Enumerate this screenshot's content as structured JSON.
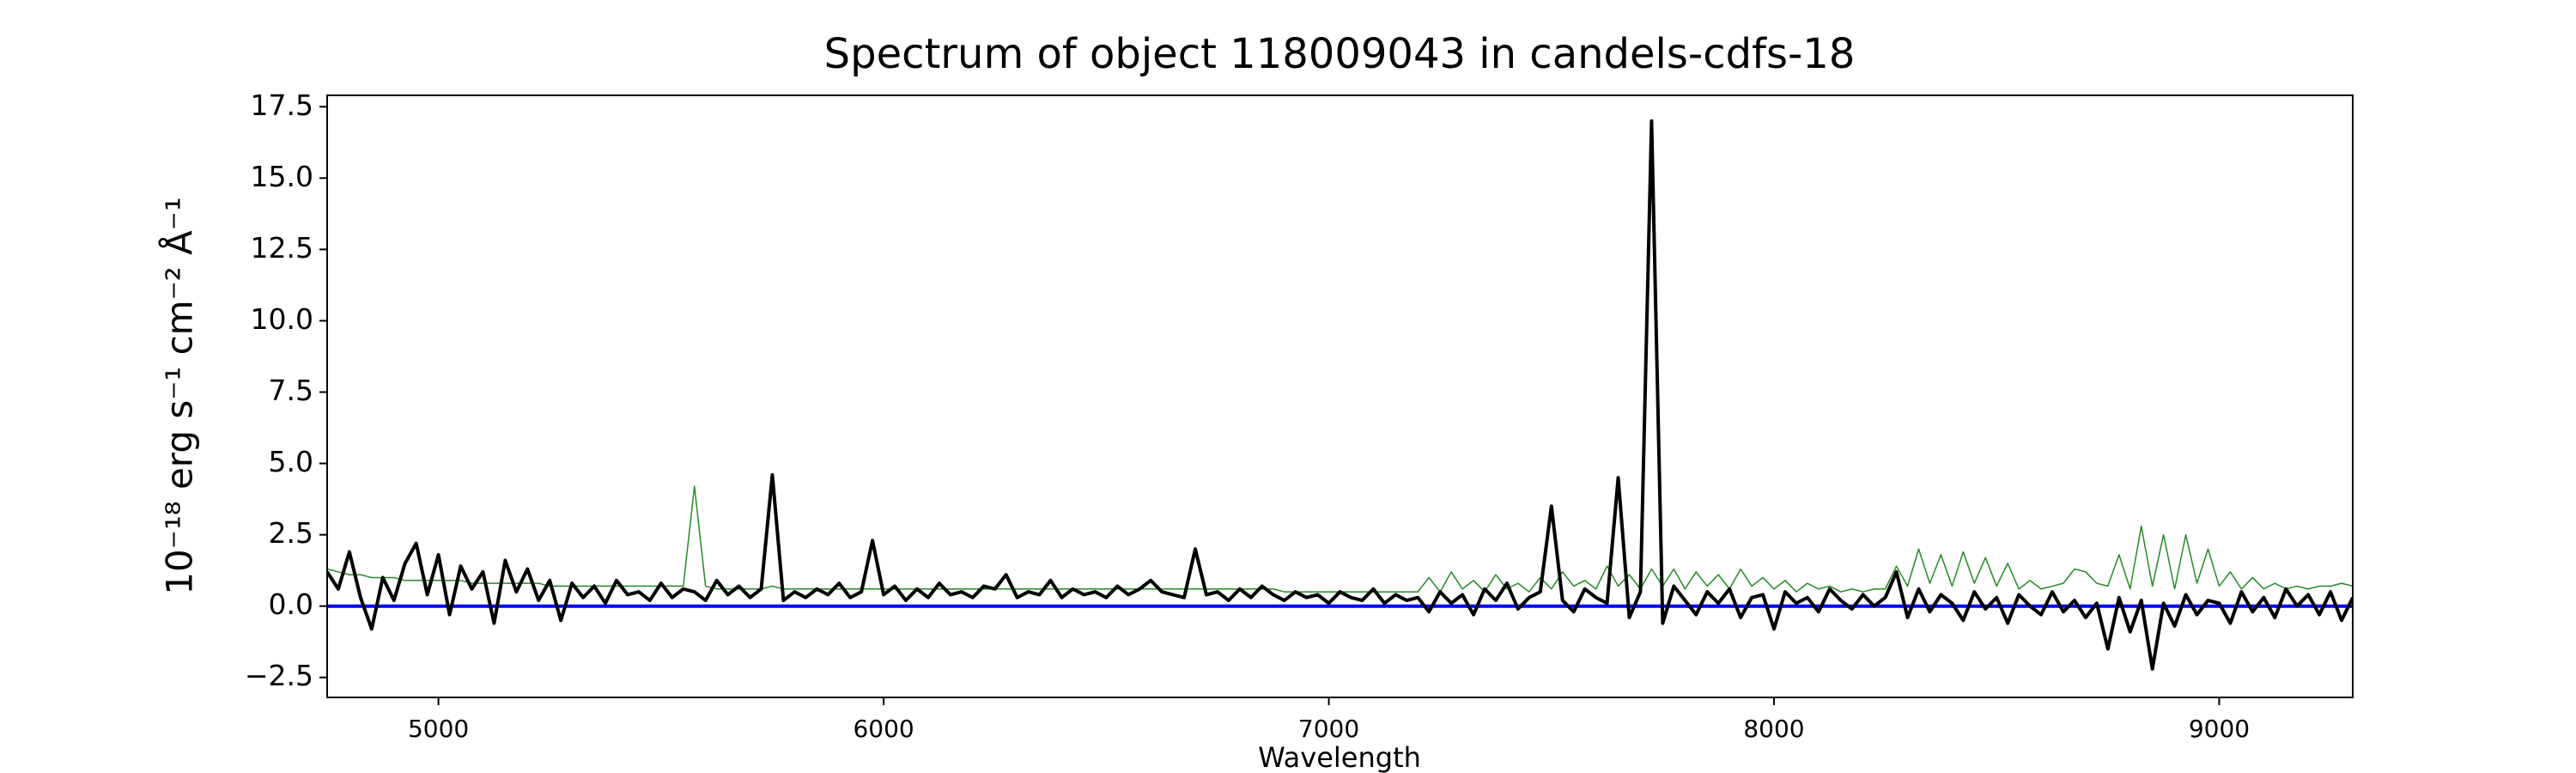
{
  "chart_data": {
    "type": "line",
    "title": "Spectrum of object 118009043 in candels-cdfs-18",
    "x_label": "Wavelength",
    "y_label": "10⁻¹⁸ erg s⁻¹ cm⁻² Å⁻¹",
    "xlim": [
      4750,
      9300
    ],
    "ylim": [
      -3.2,
      17.9
    ],
    "xticks": [
      5000,
      6000,
      7000,
      8000,
      9000
    ],
    "yticks": [
      {
        "value": -2.5,
        "label": "−2.5"
      },
      {
        "value": 0,
        "label": "0.0"
      },
      2.5,
      {
        "value": 5,
        "label": "5.0"
      },
      7.5,
      {
        "value": 10,
        "label": "10.0"
      },
      12.5,
      {
        "value": 15,
        "label": "15.0"
      },
      17.5
    ],
    "x": [
      4750,
      4775,
      4800,
      4825,
      4850,
      4875,
      4900,
      4925,
      4950,
      4975,
      5000,
      5025,
      5050,
      5075,
      5100,
      5125,
      5150,
      5175,
      5200,
      5225,
      5250,
      5275,
      5300,
      5325,
      5350,
      5375,
      5400,
      5425,
      5450,
      5475,
      5500,
      5525,
      5550,
      5575,
      5600,
      5625,
      5650,
      5675,
      5700,
      5725,
      5750,
      5775,
      5800,
      5825,
      5850,
      5875,
      5900,
      5925,
      5950,
      5975,
      6000,
      6025,
      6050,
      6075,
      6100,
      6125,
      6150,
      6175,
      6200,
      6225,
      6250,
      6275,
      6300,
      6325,
      6350,
      6375,
      6400,
      6425,
      6450,
      6475,
      6500,
      6525,
      6550,
      6575,
      6600,
      6625,
      6650,
      6675,
      6700,
      6725,
      6750,
      6775,
      6800,
      6825,
      6850,
      6875,
      6900,
      6925,
      6950,
      6975,
      7000,
      7025,
      7050,
      7075,
      7100,
      7125,
      7150,
      7175,
      7200,
      7225,
      7250,
      7275,
      7300,
      7325,
      7350,
      7375,
      7400,
      7425,
      7450,
      7475,
      7500,
      7525,
      7550,
      7575,
      7600,
      7625,
      7650,
      7675,
      7700,
      7725,
      7750,
      7775,
      7800,
      7825,
      7850,
      7875,
      7900,
      7925,
      7950,
      7975,
      8000,
      8025,
      8050,
      8075,
      8100,
      8125,
      8150,
      8175,
      8200,
      8225,
      8250,
      8275,
      8300,
      8325,
      8350,
      8375,
      8400,
      8425,
      8450,
      8475,
      8500,
      8525,
      8550,
      8575,
      8600,
      8625,
      8650,
      8675,
      8700,
      8725,
      8750,
      8775,
      8800,
      8825,
      8850,
      8875,
      8900,
      8925,
      8950,
      8975,
      9000,
      9025,
      9050,
      9075,
      9100,
      9125,
      9150,
      9175,
      9200,
      9225,
      9250,
      9275,
      9300
    ],
    "series": [
      {
        "color": "#228b22",
        "width": 1.5,
        "values": [
          1.3,
          1.2,
          1.1,
          1.1,
          1.0,
          1.0,
          1.0,
          0.9,
          0.9,
          0.9,
          0.9,
          0.9,
          0.9,
          0.8,
          0.8,
          0.8,
          0.8,
          0.8,
          0.8,
          0.8,
          0.7,
          0.7,
          0.7,
          0.7,
          0.7,
          0.7,
          0.7,
          0.7,
          0.7,
          0.7,
          0.7,
          0.7,
          0.7,
          4.2,
          0.7,
          0.6,
          0.6,
          0.6,
          0.6,
          0.6,
          0.7,
          0.6,
          0.6,
          0.6,
          0.6,
          0.6,
          0.6,
          0.6,
          0.6,
          0.6,
          0.6,
          0.6,
          0.6,
          0.6,
          0.6,
          0.6,
          0.6,
          0.6,
          0.6,
          0.6,
          0.6,
          0.6,
          0.6,
          0.6,
          0.6,
          0.6,
          0.6,
          0.6,
          0.6,
          0.6,
          0.6,
          0.6,
          0.6,
          0.6,
          0.6,
          0.6,
          0.6,
          0.6,
          0.6,
          0.6,
          0.6,
          0.6,
          0.6,
          0.6,
          0.6,
          0.6,
          0.5,
          0.5,
          0.5,
          0.5,
          0.5,
          0.5,
          0.5,
          0.5,
          0.5,
          0.5,
          0.5,
          0.5,
          0.5,
          1.0,
          0.5,
          1.2,
          0.6,
          0.9,
          0.5,
          1.1,
          0.6,
          0.8,
          0.5,
          1.0,
          0.6,
          1.2,
          0.7,
          0.9,
          0.6,
          1.4,
          0.7,
          1.1,
          0.6,
          1.3,
          0.7,
          1.3,
          0.6,
          1.2,
          0.7,
          1.1,
          0.6,
          1.3,
          0.7,
          1.0,
          0.6,
          0.9,
          0.5,
          0.8,
          0.6,
          0.7,
          0.5,
          0.6,
          0.5,
          0.6,
          0.6,
          1.4,
          0.7,
          2.0,
          0.8,
          1.8,
          0.7,
          1.9,
          0.8,
          1.7,
          0.7,
          1.5,
          0.6,
          0.9,
          0.6,
          0.7,
          0.8,
          1.3,
          1.2,
          0.8,
          0.7,
          1.8,
          0.6,
          2.8,
          0.7,
          2.5,
          0.6,
          2.5,
          0.8,
          2.0,
          0.7,
          1.2,
          0.6,
          1.0,
          0.6,
          0.8,
          0.6,
          0.7,
          0.6,
          0.7,
          0.7,
          0.8,
          0.7
        ]
      },
      {
        "color": "#0000ff",
        "width": 4,
        "x": [
          4750,
          9300
        ],
        "values": [
          0,
          0
        ]
      },
      {
        "color": "#000000",
        "width": 4,
        "values": [
          1.2,
          0.6,
          1.9,
          0.3,
          -0.8,
          1.0,
          0.2,
          1.5,
          2.2,
          0.4,
          1.8,
          -0.3,
          1.4,
          0.6,
          1.2,
          -0.6,
          1.6,
          0.5,
          1.3,
          0.2,
          0.9,
          -0.5,
          0.8,
          0.3,
          0.7,
          0.1,
          0.9,
          0.4,
          0.5,
          0.2,
          0.8,
          0.3,
          0.6,
          0.5,
          0.2,
          0.9,
          0.4,
          0.7,
          0.3,
          0.6,
          4.6,
          0.2,
          0.5,
          0.3,
          0.6,
          0.4,
          0.8,
          0.3,
          0.5,
          2.3,
          0.4,
          0.7,
          0.2,
          0.6,
          0.3,
          0.8,
          0.4,
          0.5,
          0.3,
          0.7,
          0.6,
          1.1,
          0.3,
          0.5,
          0.4,
          0.9,
          0.3,
          0.6,
          0.4,
          0.5,
          0.3,
          0.7,
          0.4,
          0.6,
          0.9,
          0.5,
          0.4,
          0.3,
          2.0,
          0.4,
          0.5,
          0.2,
          0.6,
          0.3,
          0.7,
          0.4,
          0.2,
          0.5,
          0.3,
          0.4,
          0.1,
          0.5,
          0.3,
          0.2,
          0.6,
          0.1,
          0.4,
          0.2,
          0.3,
          -0.2,
          0.5,
          0.1,
          0.4,
          -0.3,
          0.6,
          0.2,
          0.8,
          -0.1,
          0.3,
          0.5,
          3.5,
          0.2,
          -0.2,
          0.6,
          0.3,
          0.1,
          4.5,
          -0.4,
          0.5,
          17.0,
          -0.6,
          0.7,
          0.2,
          -0.3,
          0.5,
          0.1,
          0.6,
          -0.4,
          0.3,
          0.4,
          -0.8,
          0.5,
          0.1,
          0.3,
          -0.2,
          0.6,
          0.2,
          -0.1,
          0.4,
          0.0,
          0.3,
          1.2,
          -0.4,
          0.6,
          -0.2,
          0.4,
          0.1,
          -0.5,
          0.5,
          -0.1,
          0.3,
          -0.6,
          0.4,
          0.0,
          -0.3,
          0.5,
          -0.2,
          0.2,
          -0.4,
          0.1,
          -1.5,
          0.3,
          -0.9,
          0.2,
          -2.2,
          0.1,
          -0.7,
          0.4,
          -0.3,
          0.2,
          0.1,
          -0.6,
          0.5,
          -0.2,
          0.3,
          -0.4,
          0.6,
          0.0,
          0.4,
          -0.3,
          0.5,
          -0.5,
          0.3
        ]
      }
    ]
  }
}
